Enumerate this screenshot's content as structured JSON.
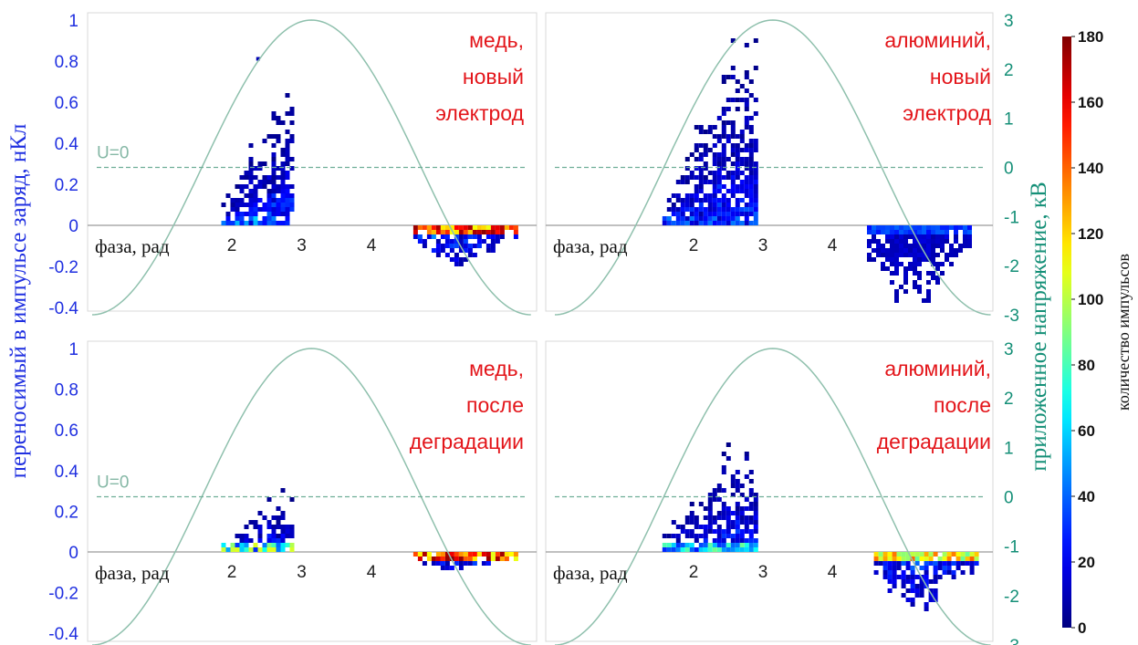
{
  "chart_data": {
    "type": "heatmap",
    "left_axis": {
      "label": "переносимый в импульсе заряд, нКл",
      "ticks": [
        "1",
        "0.8",
        "0.6",
        "0.4",
        "0.2",
        "0",
        "-0.2",
        "-0.4"
      ],
      "range": [
        -0.4,
        1
      ]
    },
    "right_axis": {
      "label": "приложенное напряжение, кВ",
      "ticks": [
        "3",
        "2",
        "1",
        "0",
        "-1",
        "-2",
        "-3"
      ],
      "range": [
        -3,
        3
      ]
    },
    "x_axis": {
      "label": "фаза, рад",
      "ticks": [
        "2",
        "3",
        "4"
      ]
    },
    "colorbar": {
      "label": "количество импульсов",
      "ticks": [
        "180",
        "160",
        "140",
        "120",
        "100",
        "80",
        "60",
        "40",
        "20",
        "0"
      ],
      "range": [
        0,
        180
      ],
      "colormap": "jet"
    },
    "zero_voltage_label": "U=0",
    "panels": [
      {
        "title": [
          "медь,",
          "новый",
          "электрод"
        ],
        "clusters": [
          {
            "phase_range": [
              1.85,
              2.85
            ],
            "charge_range": [
              0,
              0.68
            ],
            "peak_count": 60
          },
          {
            "phase_range": [
              4.6,
              6.1
            ],
            "charge_range": [
              -0.2,
              0
            ],
            "peak_count": 180
          }
        ],
        "outlier": {
          "phase": 2.35,
          "charge": 0.82
        }
      },
      {
        "title": [
          "алюминий,",
          "новый",
          "электрод"
        ],
        "clusters": [
          {
            "phase_range": [
              1.55,
              2.9
            ],
            "charge_range": [
              0,
              0.97
            ],
            "peak_count": 45
          },
          {
            "phase_range": [
              4.5,
              6.0
            ],
            "charge_range": [
              -0.42,
              0
            ],
            "peak_count": 40
          }
        ]
      },
      {
        "title": [
          "медь,",
          "после",
          "деградации"
        ],
        "clusters": [
          {
            "phase_range": [
              1.85,
              2.85
            ],
            "charge_range": [
              0,
              0.32
            ],
            "peak_count": 110
          },
          {
            "phase_range": [
              4.6,
              6.1
            ],
            "charge_range": [
              -0.1,
              0
            ],
            "peak_count": 180
          }
        ]
      },
      {
        "title": [
          "алюминий,",
          "после",
          "деградации"
        ],
        "clusters": [
          {
            "phase_range": [
              1.55,
              2.9
            ],
            "charge_range": [
              0,
              0.57
            ],
            "peak_count": 90
          },
          {
            "phase_range": [
              4.6,
              6.05
            ],
            "charge_range": [
              -0.3,
              0
            ],
            "peak_count": 140
          }
        ]
      }
    ],
    "voltage_curve": "sine, amplitude 3 кВ, period 2π rad",
    "colors": {
      "left_axis": "#1f2fe0",
      "right_axis": "#148f77",
      "curve": "#8fc0ad",
      "annotation": "#e3151a"
    }
  }
}
